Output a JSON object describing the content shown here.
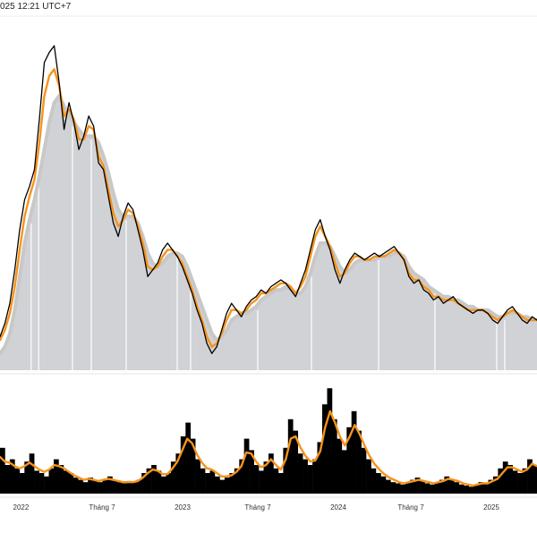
{
  "header": {
    "timestamp": "025 12:21 UTC+7"
  },
  "colors": {
    "price_line": "#000000",
    "ma_fast": "#f7931a",
    "ma_slow_band": "#c8c8c8",
    "area_fill": "#d0d2d5",
    "volume_bars": "#000000",
    "volume_ma": "#f7931a",
    "divider": "#e6e6e6"
  },
  "chart_data": [
    {
      "type": "line",
      "panel": "price",
      "x_tick_labels": [
        "2022",
        "Tháng 7",
        "2023",
        "Tháng 7",
        "2024",
        "Tháng 7",
        "2025"
      ],
      "x_tick_positions": [
        0.039,
        0.19,
        0.34,
        0.48,
        0.63,
        0.765,
        0.915
      ],
      "ylim": [
        0,
        100
      ],
      "grid": false,
      "series": [
        {
          "role": "price",
          "values": [
            10,
            14,
            20,
            30,
            42,
            51,
            55,
            60,
            75,
            92,
            95,
            97,
            86,
            72,
            80,
            74,
            66,
            70,
            76,
            73,
            62,
            60,
            52,
            44,
            40,
            46,
            50,
            48,
            42,
            36,
            28,
            30,
            32,
            36,
            38,
            36,
            34,
            31,
            27,
            23,
            18,
            14,
            8,
            5,
            7,
            12,
            17,
            20,
            18,
            16,
            19,
            21,
            22,
            24,
            23,
            25,
            26,
            27,
            26,
            24,
            22,
            26,
            30,
            36,
            42,
            45,
            40,
            36,
            30,
            26,
            30,
            33,
            35,
            34,
            33,
            34,
            35,
            34,
            35,
            36,
            37,
            35,
            33,
            28,
            26,
            27,
            24,
            23,
            21,
            22,
            20,
            21,
            22,
            20,
            19,
            18,
            17,
            18,
            18,
            17,
            15,
            14,
            16,
            18,
            19,
            17,
            15,
            14,
            16,
            15
          ]
        },
        {
          "role": "moving_average_fast",
          "values": [
            9,
            12,
            17,
            25,
            36,
            46,
            52,
            57,
            68,
            82,
            88,
            90,
            85,
            76,
            78,
            75,
            69,
            69,
            73,
            72,
            64,
            61,
            54,
            47,
            43,
            45,
            48,
            47,
            43,
            38,
            31,
            30,
            31,
            34,
            36,
            36,
            34,
            32,
            28,
            24,
            19,
            15,
            10,
            7,
            8,
            11,
            15,
            18,
            18,
            17,
            18,
            20,
            21,
            23,
            23,
            24,
            25,
            26,
            26,
            25,
            23,
            25,
            28,
            34,
            40,
            43,
            40,
            37,
            32,
            28,
            29,
            32,
            34,
            34,
            33,
            33,
            34,
            34,
            34,
            35,
            36,
            35,
            33,
            29,
            27,
            27,
            25,
            24,
            22,
            22,
            21,
            21,
            21,
            20,
            19,
            18,
            18,
            18,
            18,
            17,
            16,
            15,
            16,
            17,
            18,
            17,
            16,
            15,
            15,
            15
          ]
        },
        {
          "role": "moving_average_slow",
          "values": [
            5,
            7,
            11,
            18,
            28,
            38,
            45,
            51,
            58,
            66,
            74,
            80,
            82,
            79,
            76,
            74,
            72,
            70,
            70,
            70,
            68,
            64,
            59,
            53,
            48,
            46,
            46,
            46,
            44,
            40,
            35,
            32,
            31,
            32,
            34,
            35,
            35,
            34,
            31,
            27,
            23,
            19,
            15,
            11,
            9,
            10,
            12,
            15,
            16,
            17,
            17,
            18,
            19,
            21,
            22,
            23,
            24,
            24,
            25,
            24,
            23,
            23,
            25,
            29,
            34,
            38,
            38,
            37,
            34,
            31,
            29,
            30,
            32,
            33,
            33,
            33,
            33,
            34,
            34,
            34,
            35,
            35,
            34,
            31,
            29,
            28,
            27,
            25,
            24,
            23,
            22,
            22,
            21,
            21,
            20,
            19,
            19,
            18,
            18,
            18,
            17,
            16,
            16,
            17,
            17,
            17,
            16,
            16,
            15,
            15
          ]
        }
      ]
    },
    {
      "type": "bar",
      "panel": "volume",
      "ylim": [
        0,
        100
      ],
      "series": [
        {
          "role": "volume",
          "values": [
            40,
            25,
            30,
            22,
            18,
            28,
            35,
            20,
            18,
            15,
            22,
            30,
            25,
            20,
            18,
            14,
            12,
            10,
            14,
            12,
            10,
            12,
            15,
            12,
            10,
            9,
            11,
            10,
            12,
            18,
            22,
            25,
            20,
            15,
            18,
            28,
            35,
            50,
            62,
            48,
            30,
            22,
            18,
            20,
            15,
            12,
            14,
            18,
            22,
            30,
            48,
            38,
            25,
            20,
            28,
            35,
            22,
            18,
            40,
            65,
            55,
            35,
            30,
            25,
            30,
            45,
            78,
            92,
            65,
            48,
            38,
            58,
            72,
            55,
            40,
            30,
            22,
            18,
            15,
            12,
            10,
            9,
            8,
            10,
            12,
            14,
            11,
            9,
            8,
            10,
            12,
            15,
            12,
            10,
            8,
            7,
            6,
            8,
            10,
            9,
            12,
            15,
            22,
            28,
            25,
            20,
            18,
            22,
            30,
            25
          ]
        },
        {
          "role": "volume_moving_average",
          "values": [
            32,
            28,
            27,
            24,
            22,
            24,
            27,
            24,
            21,
            19,
            21,
            25,
            24,
            22,
            19,
            16,
            14,
            12,
            13,
            12,
            11,
            12,
            13,
            12,
            11,
            10,
            10,
            10,
            11,
            14,
            18,
            21,
            20,
            17,
            17,
            22,
            28,
            38,
            48,
            44,
            34,
            27,
            22,
            21,
            18,
            15,
            15,
            16,
            19,
            24,
            36,
            35,
            28,
            23,
            25,
            30,
            25,
            21,
            30,
            48,
            50,
            40,
            33,
            28,
            29,
            37,
            58,
            72,
            62,
            50,
            42,
            50,
            60,
            52,
            42,
            33,
            26,
            21,
            17,
            14,
            12,
            10,
            9,
            10,
            11,
            12,
            11,
            10,
            9,
            10,
            11,
            13,
            12,
            11,
            9,
            8,
            7,
            8,
            9,
            9,
            11,
            13,
            18,
            23,
            23,
            21,
            19,
            21,
            26,
            24
          ]
        }
      ]
    }
  ]
}
